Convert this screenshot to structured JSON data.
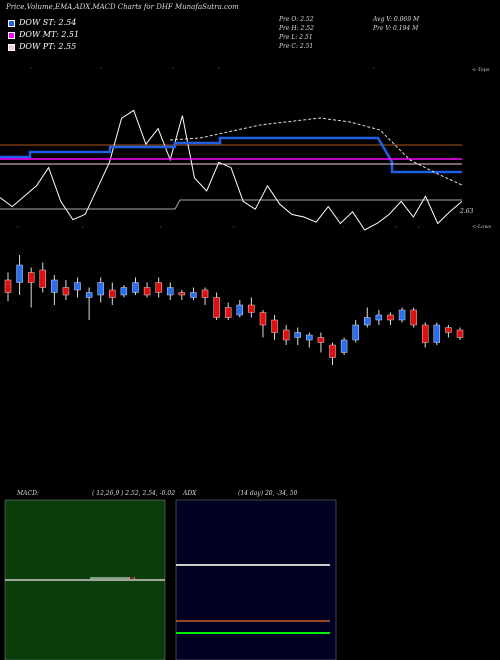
{
  "title": "Price,Volume,EMA,ADX,MACD Charts for DHF MunafaSutra.com",
  "legend": [
    {
      "label": "DOW ST: 2.54",
      "color": "#1e5fe6"
    },
    {
      "label": "DOW MT: 2.51",
      "color": "#ff00ff"
    },
    {
      "label": "DOW PT: 2.55",
      "color": "#f4c8e6"
    }
  ],
  "info": {
    "open": "Pre  O: 2.52",
    "high": "Pre  H: 2.52",
    "low": "Pre  L: 2.51",
    "close": "Pre  C: 2.51",
    "avg_vol": "Avg V: 0.069 M",
    "pre_vol": "Pre  V: 0.194  M"
  },
  "side_labels": {
    "top": "<-Tops",
    "lows": "<-Lows",
    "price": "2.63"
  },
  "macd_label": "MACD:",
  "macd_params": "( 12,26,9 ) 2.52,  2.54,  -0.02",
  "adx_label": "ADX",
  "adx_params": "(14  day) 20,  -34,  50",
  "colors": {
    "price_line": "#ffffff",
    "ema_st": "#1e5fe6",
    "ema_mt": "#ff00ff",
    "ema_pt": "#f4c8e6",
    "brown": "#8b4513",
    "up_candle": "#2a6ff0",
    "down_candle": "#e01010",
    "macd_bg": "#0b3d0b",
    "adx_bg": "#000022"
  },
  "chart_data": [
    {
      "type": "line",
      "name": "price-overview",
      "series": [
        {
          "name": "price",
          "values": [
            0.25,
            0.18,
            0.26,
            0.34,
            0.48,
            0.22,
            0.08,
            0.12,
            0.32,
            0.52,
            0.86,
            0.92,
            0.66,
            0.78,
            0.54,
            0.88,
            0.4,
            0.3,
            0.52,
            0.48,
            0.22,
            0.16,
            0.34,
            0.2,
            0.12,
            0.1,
            0.06,
            0.18,
            0.05,
            0.14,
            0.0,
            0.05,
            0.12,
            0.22,
            0.1,
            0.26,
            0.05,
            0.14,
            0.22
          ]
        },
        {
          "name": "DOW ST",
          "values": [
            0.64,
            0.64,
            0.64,
            0.64,
            0.72,
            0.72,
            0.72,
            0.72,
            0.8,
            0.8,
            0.8,
            0.8,
            0.8,
            0.8,
            0.8,
            0.8,
            0.8,
            0.8,
            0.8,
            0.8,
            0.8,
            0.8,
            0.8,
            0.8,
            0.8,
            0.8,
            0.8,
            0.8,
            0.8,
            0.72,
            0.62,
            0.5,
            0.5,
            0.5,
            0.5,
            0.5,
            0.5,
            0.5,
            0.5
          ]
        },
        {
          "name": "DOW MT",
          "values": [
            0.5,
            0.5,
            0.5,
            0.5,
            0.5,
            0.5,
            0.5,
            0.5,
            0.5,
            0.5,
            0.5,
            0.5,
            0.5,
            0.5,
            0.5,
            0.5,
            0.5,
            0.5,
            0.5,
            0.5,
            0.5,
            0.5,
            0.5,
            0.5,
            0.5,
            0.5,
            0.5,
            0.5,
            0.5,
            0.5,
            0.5,
            0.5,
            0.5,
            0.5,
            0.5,
            0.5,
            0.5,
            0.5,
            0.5
          ]
        },
        {
          "name": "DOW PT",
          "values": [
            0.45,
            0.45,
            0.45,
            0.45,
            0.45,
            0.45,
            0.45,
            0.45,
            0.45,
            0.45,
            0.45,
            0.45,
            0.45,
            0.45,
            0.45,
            0.45,
            0.45,
            0.45,
            0.45,
            0.45,
            0.45,
            0.45,
            0.45,
            0.45,
            0.45,
            0.45,
            0.45,
            0.45,
            0.45,
            0.45,
            0.45,
            0.45,
            0.45,
            0.45,
            0.45,
            0.45,
            0.45,
            0.45,
            0.45
          ]
        }
      ]
    },
    {
      "type": "candlestick",
      "name": "price-candles",
      "candles": [
        {
          "o": 0.72,
          "c": 0.62,
          "h": 0.78,
          "l": 0.55
        },
        {
          "o": 0.7,
          "c": 0.84,
          "h": 0.92,
          "l": 0.6
        },
        {
          "o": 0.78,
          "c": 0.7,
          "h": 0.82,
          "l": 0.5
        },
        {
          "o": 0.8,
          "c": 0.66,
          "h": 0.86,
          "l": 0.62
        },
        {
          "o": 0.62,
          "c": 0.72,
          "h": 0.76,
          "l": 0.52
        },
        {
          "o": 0.66,
          "c": 0.6,
          "h": 0.72,
          "l": 0.56
        },
        {
          "o": 0.64,
          "c": 0.7,
          "h": 0.74,
          "l": 0.58
        },
        {
          "o": 0.58,
          "c": 0.62,
          "h": 0.66,
          "l": 0.4
        },
        {
          "o": 0.6,
          "c": 0.7,
          "h": 0.74,
          "l": 0.54
        },
        {
          "o": 0.64,
          "c": 0.58,
          "h": 0.7,
          "l": 0.52
        },
        {
          "o": 0.6,
          "c": 0.66,
          "h": 0.68,
          "l": 0.58
        },
        {
          "o": 0.62,
          "c": 0.7,
          "h": 0.74,
          "l": 0.6
        },
        {
          "o": 0.66,
          "c": 0.6,
          "h": 0.7,
          "l": 0.58
        },
        {
          "o": 0.7,
          "c": 0.62,
          "h": 0.74,
          "l": 0.58
        },
        {
          "o": 0.6,
          "c": 0.66,
          "h": 0.7,
          "l": 0.56
        },
        {
          "o": 0.62,
          "c": 0.6,
          "h": 0.64,
          "l": 0.56
        },
        {
          "o": 0.58,
          "c": 0.62,
          "h": 0.66,
          "l": 0.56
        },
        {
          "o": 0.64,
          "c": 0.58,
          "h": 0.66,
          "l": 0.52
        },
        {
          "o": 0.58,
          "c": 0.42,
          "h": 0.62,
          "l": 0.4
        },
        {
          "o": 0.5,
          "c": 0.42,
          "h": 0.54,
          "l": 0.4
        },
        {
          "o": 0.44,
          "c": 0.52,
          "h": 0.56,
          "l": 0.42
        },
        {
          "o": 0.52,
          "c": 0.46,
          "h": 0.58,
          "l": 0.42
        },
        {
          "o": 0.46,
          "c": 0.36,
          "h": 0.48,
          "l": 0.26
        },
        {
          "o": 0.4,
          "c": 0.3,
          "h": 0.44,
          "l": 0.24
        },
        {
          "o": 0.32,
          "c": 0.24,
          "h": 0.36,
          "l": 0.2
        },
        {
          "o": 0.26,
          "c": 0.3,
          "h": 0.34,
          "l": 0.2
        },
        {
          "o": 0.24,
          "c": 0.28,
          "h": 0.3,
          "l": 0.18
        },
        {
          "o": 0.26,
          "c": 0.22,
          "h": 0.3,
          "l": 0.14
        },
        {
          "o": 0.2,
          "c": 0.1,
          "h": 0.22,
          "l": 0.04
        },
        {
          "o": 0.14,
          "c": 0.24,
          "h": 0.26,
          "l": 0.12
        },
        {
          "o": 0.24,
          "c": 0.36,
          "h": 0.4,
          "l": 0.22
        },
        {
          "o": 0.36,
          "c": 0.42,
          "h": 0.5,
          "l": 0.34
        },
        {
          "o": 0.4,
          "c": 0.44,
          "h": 0.48,
          "l": 0.36
        },
        {
          "o": 0.44,
          "c": 0.4,
          "h": 0.46,
          "l": 0.36
        },
        {
          "o": 0.4,
          "c": 0.48,
          "h": 0.5,
          "l": 0.38
        },
        {
          "o": 0.48,
          "c": 0.36,
          "h": 0.5,
          "l": 0.34
        },
        {
          "o": 0.36,
          "c": 0.22,
          "h": 0.38,
          "l": 0.18
        },
        {
          "o": 0.22,
          "c": 0.36,
          "h": 0.38,
          "l": 0.2
        },
        {
          "o": 0.34,
          "c": 0.3,
          "h": 0.36,
          "l": 0.26
        },
        {
          "o": 0.32,
          "c": 0.26,
          "h": 0.34,
          "l": 0.24
        }
      ]
    },
    {
      "type": "line",
      "name": "macd",
      "series": [
        {
          "name": "macd",
          "values": [
            0.5,
            0.5,
            0.5,
            0.5,
            0.5,
            0.5,
            0.5,
            0.5,
            0.52,
            0.52,
            0.5,
            0.5
          ]
        },
        {
          "name": "signal",
          "values": [
            0.5,
            0.5,
            0.5,
            0.5,
            0.5,
            0.5,
            0.5,
            0.5,
            0.5,
            0.5,
            0.5,
            0.5
          ]
        }
      ]
    },
    {
      "type": "line",
      "name": "adx",
      "series": [
        {
          "name": "+DI",
          "values": [
            0.75,
            0.75,
            0.75,
            0.75,
            0.75,
            0.75
          ]
        },
        {
          "name": "-DI",
          "values": [
            0.25,
            0.25,
            0.25,
            0.25,
            0.25,
            0.25
          ]
        },
        {
          "name": "ADX",
          "values": [
            0.16,
            0.16,
            0.16,
            0.16,
            0.16,
            0.16
          ]
        }
      ]
    }
  ]
}
